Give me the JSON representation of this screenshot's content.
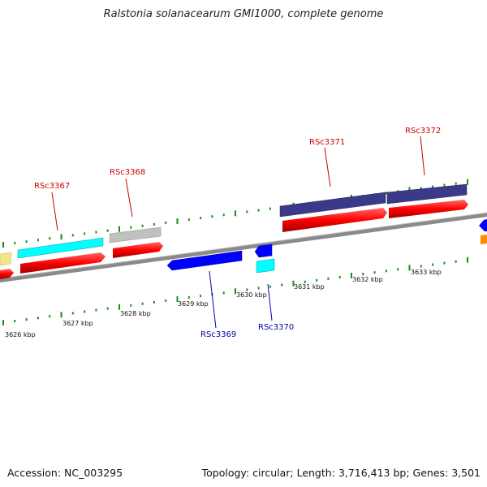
{
  "title": "Ralstonia solanacearum GMI1000, complete genome",
  "footer": {
    "accession": "Accession: NC_003295",
    "summary": "Topology: circular; Length: 3,716,413 bp; Genes: 3,501"
  },
  "scale_labels": [
    "3626 kbp",
    "3627 kbp",
    "3628 kbp",
    "3629 kbp",
    "3630 kbp",
    "3631 kbp",
    "3632 kbp",
    "3633 kbp"
  ],
  "genes": [
    {
      "label": "RSc3367",
      "strand": "forward",
      "color": "#cc0000",
      "fill": "#00ffff"
    },
    {
      "label": "RSc3368",
      "strand": "forward",
      "color": "#cc0000",
      "fill": "#c0c0c0"
    },
    {
      "label": "RSc3369",
      "strand": "reverse",
      "color": "#0000aa",
      "fill": "#0000ff"
    },
    {
      "label": "RSc3370",
      "strand": "reverse",
      "color": "#0000aa",
      "fill": "#0000ff"
    },
    {
      "label": "RSc3371",
      "strand": "forward",
      "color": "#cc0000",
      "fill": "#3b3a8a"
    },
    {
      "label": "RSc3372",
      "strand": "forward",
      "color": "#cc0000",
      "fill": "#3b3a8a"
    }
  ],
  "colors": {
    "cds": "#ff0000",
    "tick": "#1a8a1a",
    "backbone": "#888888",
    "partial_left": "#f0e68c",
    "partial_right_top": "#0000ff",
    "partial_right_bottom": "#ff8c00",
    "rna_cyan": "#00ffff"
  }
}
